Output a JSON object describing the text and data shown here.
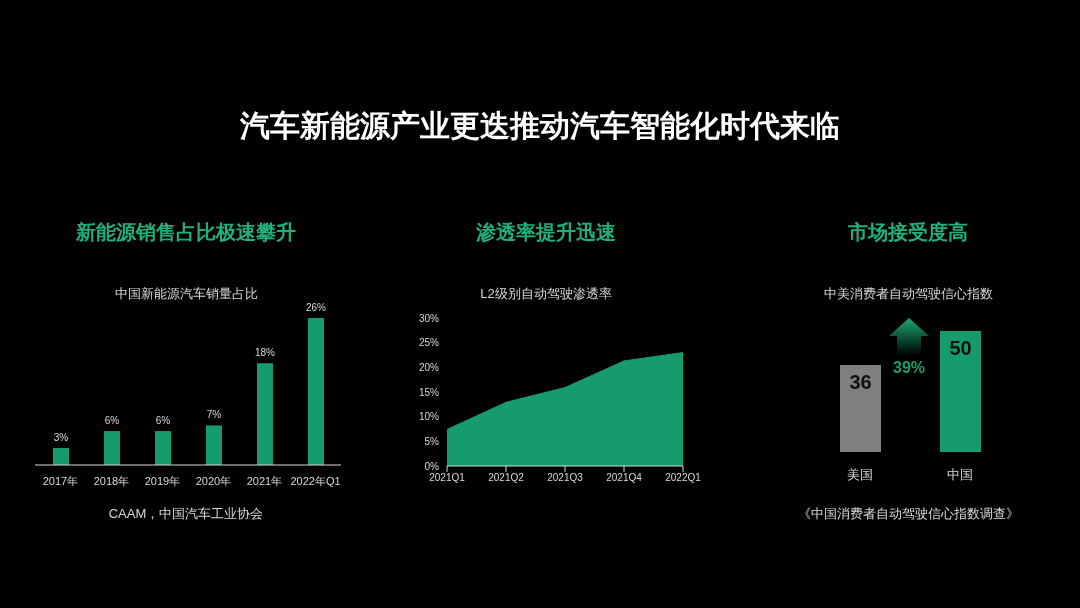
{
  "chart_data": [
    {
      "type": "other",
      "title": "汽车新能源产业更迭推动汽车智能化时代来临"
    },
    {
      "type": "bar",
      "title": "新能源销售占比极速攀升",
      "subtitle": "中国新能源汽车销量占比",
      "categories": [
        "2017年",
        "2018年",
        "2019年",
        "2020年",
        "2021年",
        "2022年Q1"
      ],
      "values": [
        3,
        6,
        6,
        7,
        18,
        26
      ],
      "value_labels": [
        "3%",
        "6%",
        "6%",
        "7%",
        "18%",
        "26%"
      ],
      "color": "#169b6c",
      "annotations": [
        "CAAM，中国汽车工业协会"
      ]
    },
    {
      "type": "area",
      "title": "渗透率提升迅速",
      "subtitle": "L2级别自动驾驶渗透率",
      "categories": [
        "2021Q1",
        "2021Q2",
        "2021Q3",
        "2021Q4",
        "2022Q1"
      ],
      "values": [
        7.4,
        12.9,
        15.9,
        21.3,
        23
      ],
      "color": "#169b6c",
      "ylim": [
        0,
        30
      ],
      "yticks": [
        {
          "value": 0,
          "label": "0%"
        },
        {
          "value": 5,
          "label": "5%"
        },
        {
          "value": 10,
          "label": "10%"
        },
        {
          "value": 15,
          "label": "15%"
        },
        {
          "value": 20,
          "label": "20%"
        },
        {
          "value": 25,
          "label": "25%"
        },
        {
          "value": 30,
          "label": "30%"
        }
      ]
    },
    {
      "type": "bar",
      "title": "市场接受度高",
      "subtitle": "中美消费者自动驾驶信心指数",
      "categories": [
        "美国",
        "中国"
      ],
      "values": [
        36,
        50
      ],
      "colors": [
        "#7f7f7f",
        "#169b6c"
      ],
      "data_labels": true,
      "annotations": [
        "39%",
        "《中国消费者自动驾驶信心指数调查》"
      ]
    }
  ]
}
